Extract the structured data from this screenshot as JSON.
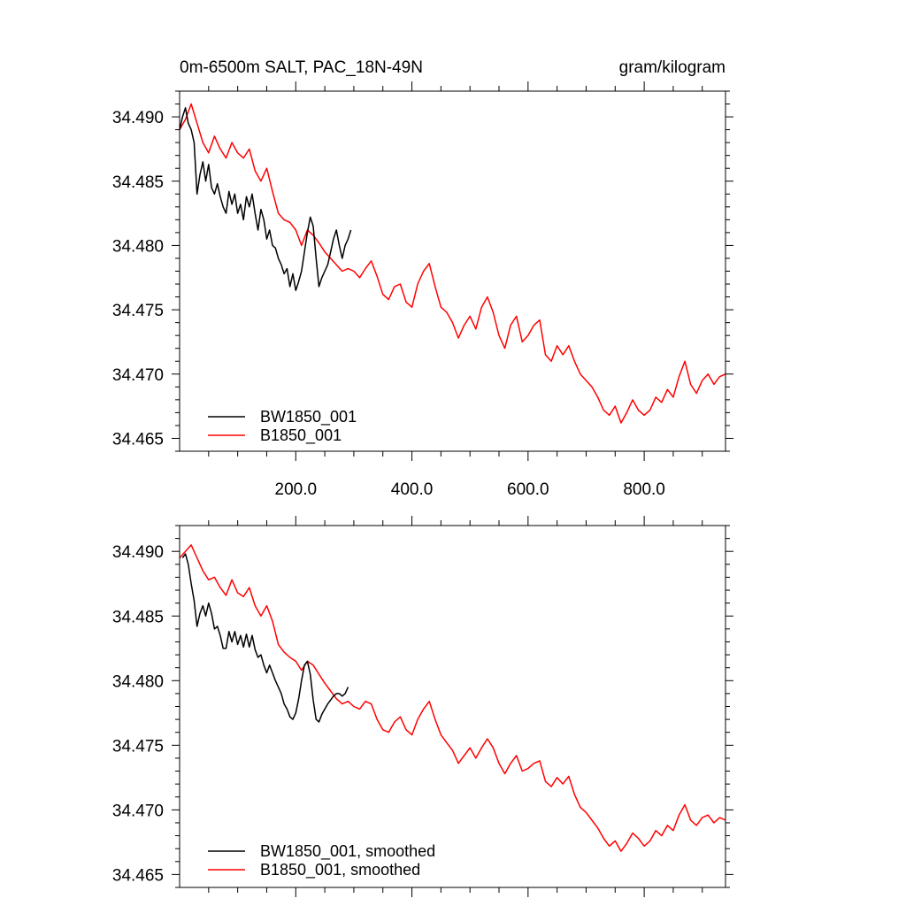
{
  "colors": {
    "black_series": "#000000",
    "red_series": "#ff0000",
    "axis": "#000000"
  },
  "chart_data": [
    {
      "type": "line",
      "title": "0m-6500m SALT, PAC_18N-49N",
      "units": "gram/kilogram",
      "xlim": [
        0,
        940
      ],
      "ylim": [
        34.464,
        34.492
      ],
      "xticks": [
        200,
        400,
        600,
        800
      ],
      "xtick_labels": [
        "200.0",
        "400.0",
        "600.0",
        "800.0"
      ],
      "yticks": [
        34.465,
        34.47,
        34.475,
        34.48,
        34.485,
        34.49
      ],
      "ytick_labels": [
        "34.465",
        "34.470",
        "34.475",
        "34.480",
        "34.485",
        "34.490"
      ],
      "legend": [
        "BW1850_001",
        "B1850_001"
      ],
      "series": [
        {
          "name": "BW1850_001",
          "color": "#000000",
          "x": [
            0,
            5,
            10,
            15,
            20,
            25,
            30,
            35,
            40,
            45,
            50,
            55,
            60,
            65,
            70,
            75,
            80,
            85,
            90,
            95,
            100,
            105,
            110,
            115,
            120,
            125,
            130,
            135,
            140,
            145,
            150,
            155,
            160,
            165,
            170,
            175,
            180,
            185,
            190,
            195,
            200,
            205,
            210,
            215,
            220,
            225,
            230,
            235,
            240,
            245,
            250,
            255,
            260,
            265,
            270,
            275,
            280,
            285,
            290,
            295
          ],
          "values": [
            34.489,
            34.49,
            34.4907,
            34.4895,
            34.489,
            34.488,
            34.484,
            34.4855,
            34.4865,
            34.485,
            34.4863,
            34.4845,
            34.484,
            34.4848,
            34.4838,
            34.483,
            34.4825,
            34.4842,
            34.4832,
            34.484,
            34.4825,
            34.4832,
            34.482,
            34.4838,
            34.483,
            34.484,
            34.4825,
            34.4812,
            34.4828,
            34.482,
            34.4805,
            34.4812,
            34.48,
            34.4798,
            34.479,
            34.4785,
            34.4778,
            34.4782,
            34.4768,
            34.4778,
            34.4765,
            34.4772,
            34.478,
            34.4795,
            34.481,
            34.4822,
            34.4815,
            34.479,
            34.4768,
            34.4775,
            34.478,
            34.4785,
            34.4795,
            34.4805,
            34.4812,
            34.48,
            34.479,
            34.48,
            34.4805,
            34.4812
          ]
        },
        {
          "name": "B1850_001",
          "color": "#ff0000",
          "x": [
            0,
            10,
            20,
            30,
            40,
            50,
            60,
            70,
            80,
            90,
            100,
            110,
            120,
            130,
            140,
            150,
            160,
            170,
            180,
            190,
            200,
            210,
            220,
            230,
            240,
            250,
            260,
            270,
            280,
            290,
            300,
            310,
            320,
            330,
            340,
            350,
            360,
            370,
            380,
            390,
            400,
            410,
            420,
            430,
            440,
            450,
            460,
            470,
            480,
            490,
            500,
            510,
            520,
            530,
            540,
            550,
            560,
            570,
            580,
            590,
            600,
            610,
            620,
            630,
            640,
            650,
            660,
            670,
            680,
            690,
            700,
            710,
            720,
            730,
            740,
            750,
            760,
            770,
            780,
            790,
            800,
            810,
            820,
            830,
            840,
            850,
            860,
            870,
            880,
            890,
            900,
            910,
            920,
            930,
            940
          ],
          "values": [
            34.489,
            34.4898,
            34.491,
            34.4895,
            34.488,
            34.4872,
            34.4885,
            34.4875,
            34.4868,
            34.488,
            34.4872,
            34.4868,
            34.4875,
            34.4858,
            34.485,
            34.486,
            34.4842,
            34.4825,
            34.482,
            34.4818,
            34.4812,
            34.48,
            34.4812,
            34.4808,
            34.4802,
            34.4795,
            34.479,
            34.4785,
            34.478,
            34.4782,
            34.478,
            34.4775,
            34.4782,
            34.4788,
            34.4776,
            34.4762,
            34.4758,
            34.4768,
            34.477,
            34.4756,
            34.4752,
            34.477,
            34.478,
            34.4786,
            34.4768,
            34.4752,
            34.4748,
            34.474,
            34.4728,
            34.4738,
            34.4745,
            34.4735,
            34.4752,
            34.476,
            34.4748,
            34.473,
            34.472,
            34.4738,
            34.4745,
            34.4725,
            34.473,
            34.4738,
            34.4742,
            34.4715,
            34.471,
            34.4722,
            34.4715,
            34.4722,
            34.471,
            34.47,
            34.4695,
            34.469,
            34.4682,
            34.4672,
            34.4668,
            34.4675,
            34.4662,
            34.467,
            34.468,
            34.4672,
            34.4668,
            34.4672,
            34.4682,
            34.4678,
            34.4688,
            34.4682,
            34.4698,
            34.471,
            34.4692,
            34.4685,
            34.4695,
            34.47,
            34.4692,
            34.4698,
            34.47
          ]
        }
      ]
    },
    {
      "type": "line",
      "title": "",
      "units": "",
      "xlim": [
        0,
        940
      ],
      "ylim": [
        34.464,
        34.492
      ],
      "xticks": [
        200,
        400,
        600,
        800
      ],
      "xtick_labels": [],
      "yticks": [
        34.465,
        34.47,
        34.475,
        34.48,
        34.485,
        34.49
      ],
      "ytick_labels": [
        "34.465",
        "34.470",
        "34.475",
        "34.480",
        "34.485",
        "34.490"
      ],
      "legend": [
        "BW1850_001, smoothed",
        "B1850_001, smoothed"
      ],
      "series": [
        {
          "name": "BW1850_001, smoothed",
          "color": "#000000",
          "x": [
            5,
            10,
            15,
            20,
            25,
            30,
            35,
            40,
            45,
            50,
            55,
            60,
            65,
            70,
            75,
            80,
            85,
            90,
            95,
            100,
            105,
            110,
            115,
            120,
            125,
            130,
            135,
            140,
            145,
            150,
            155,
            160,
            165,
            170,
            175,
            180,
            185,
            190,
            195,
            200,
            205,
            210,
            215,
            220,
            225,
            230,
            235,
            240,
            245,
            250,
            255,
            260,
            265,
            270,
            275,
            280,
            285,
            290
          ],
          "values": [
            34.4895,
            34.4898,
            34.489,
            34.4875,
            34.4862,
            34.4842,
            34.4852,
            34.4858,
            34.485,
            34.486,
            34.4852,
            34.484,
            34.4842,
            34.4835,
            34.4825,
            34.4825,
            34.4838,
            34.483,
            34.4838,
            34.4828,
            34.4835,
            34.4826,
            34.4836,
            34.4826,
            34.4835,
            34.4824,
            34.4818,
            34.482,
            34.4812,
            34.4806,
            34.4812,
            34.4806,
            34.48,
            34.4795,
            34.479,
            34.4782,
            34.4778,
            34.4772,
            34.477,
            34.4775,
            34.4786,
            34.48,
            34.4812,
            34.4815,
            34.4805,
            34.4785,
            34.477,
            34.4768,
            34.4774,
            34.4778,
            34.4782,
            34.4785,
            34.4788,
            34.479,
            34.479,
            34.4788,
            34.479,
            34.4795
          ]
        },
        {
          "name": "B1850_001, smoothed",
          "color": "#ff0000",
          "x": [
            0,
            10,
            20,
            30,
            40,
            50,
            60,
            70,
            80,
            90,
            100,
            110,
            120,
            130,
            140,
            150,
            160,
            170,
            180,
            190,
            200,
            210,
            220,
            230,
            240,
            250,
            260,
            270,
            280,
            290,
            300,
            310,
            320,
            330,
            340,
            350,
            360,
            370,
            380,
            390,
            400,
            410,
            420,
            430,
            440,
            450,
            460,
            470,
            480,
            490,
            500,
            510,
            520,
            530,
            540,
            550,
            560,
            570,
            580,
            590,
            600,
            610,
            620,
            630,
            640,
            650,
            660,
            670,
            680,
            690,
            700,
            710,
            720,
            730,
            740,
            750,
            760,
            770,
            780,
            790,
            800,
            810,
            820,
            830,
            840,
            850,
            860,
            870,
            880,
            890,
            900,
            910,
            920,
            930,
            940
          ],
          "values": [
            34.4895,
            34.49,
            34.4905,
            34.4895,
            34.4885,
            34.4878,
            34.488,
            34.4872,
            34.4866,
            34.4878,
            34.4868,
            34.4865,
            34.4872,
            34.4858,
            34.485,
            34.4858,
            34.4846,
            34.4828,
            34.4822,
            34.4818,
            34.4815,
            34.4808,
            34.4815,
            34.4812,
            34.4805,
            34.4798,
            34.4792,
            34.4786,
            34.4782,
            34.4784,
            34.478,
            34.4778,
            34.4784,
            34.4782,
            34.477,
            34.4762,
            34.476,
            34.4768,
            34.4772,
            34.4762,
            34.4758,
            34.477,
            34.4778,
            34.4784,
            34.477,
            34.4758,
            34.4752,
            34.4746,
            34.4736,
            34.4742,
            34.4748,
            34.474,
            34.4748,
            34.4755,
            34.4748,
            34.4736,
            34.4728,
            34.4736,
            34.4742,
            34.473,
            34.4732,
            34.4736,
            34.4738,
            34.4722,
            34.4718,
            34.4725,
            34.472,
            34.4726,
            34.4712,
            34.4702,
            34.4698,
            34.4692,
            34.4686,
            34.4678,
            34.4672,
            34.4676,
            34.4668,
            34.4674,
            34.4682,
            34.4678,
            34.4672,
            34.4676,
            34.4684,
            34.468,
            34.4688,
            34.4684,
            34.4696,
            34.4704,
            34.4692,
            34.4688,
            34.4694,
            34.4696,
            34.469,
            34.4694,
            34.4692
          ]
        }
      ]
    }
  ]
}
